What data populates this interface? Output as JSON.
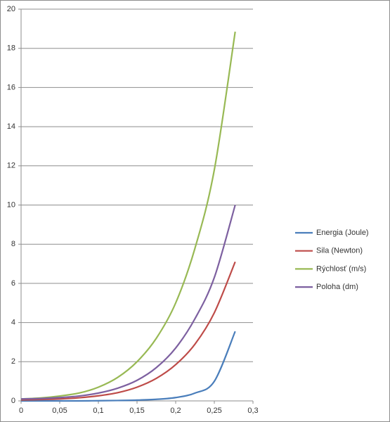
{
  "chart_data": {
    "type": "line",
    "x": [
      0,
      0.025,
      0.05,
      0.075,
      0.1,
      0.125,
      0.15,
      0.175,
      0.2,
      0.225,
      0.25,
      0.277
    ],
    "series": [
      {
        "name": "Energia (Joule)",
        "color": "#4a7ebb",
        "values": [
          0,
          0,
          0,
          0,
          0.01,
          0.02,
          0.04,
          0.08,
          0.17,
          0.4,
          1.0,
          3.55
        ]
      },
      {
        "name": "Sila (Newton)",
        "color": "#be4b48",
        "values": [
          0.05,
          0.07,
          0.1,
          0.16,
          0.26,
          0.42,
          0.7,
          1.15,
          1.85,
          2.9,
          4.5,
          7.1
        ]
      },
      {
        "name": "Rýchlosť (m/s)",
        "color": "#98b954",
        "values": [
          0.1,
          0.15,
          0.25,
          0.4,
          0.7,
          1.2,
          2.0,
          3.2,
          5.0,
          7.8,
          11.8,
          18.85
        ]
      },
      {
        "name": "Poloha (dm)",
        "color": "#7d60a0",
        "values": [
          0.1,
          0.12,
          0.17,
          0.25,
          0.4,
          0.65,
          1.05,
          1.7,
          2.7,
          4.2,
          6.3,
          10
        ]
      }
    ],
    "xlim": [
      0,
      0.3
    ],
    "xticks": [
      0,
      {
        "value": 0.05,
        "label": "0,05"
      },
      {
        "value": 0.1,
        "label": "0,1"
      },
      {
        "value": 0.15,
        "label": "0,15"
      },
      {
        "value": 0.2,
        "label": "0,2"
      },
      {
        "value": 0.25,
        "label": "0,25"
      },
      {
        "value": 0.3,
        "label": "0,3"
      }
    ],
    "ylim": [
      0,
      20
    ],
    "yticks": [
      0,
      2,
      4,
      6,
      8,
      10,
      12,
      14,
      16,
      18,
      20
    ],
    "grid": true,
    "legend": "right"
  }
}
